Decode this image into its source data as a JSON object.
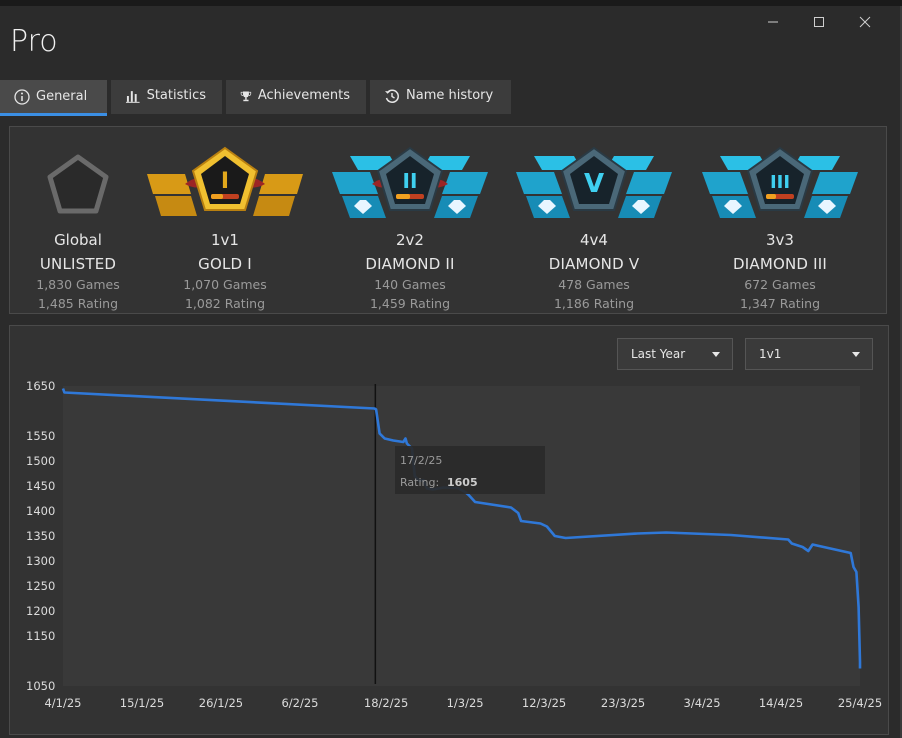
{
  "window": {
    "title": "Pro",
    "minimize_glyph": "—",
    "maximize_glyph": "☐",
    "close_glyph": "✕"
  },
  "tabs": [
    {
      "label": "General",
      "icon": "info-icon",
      "active": true
    },
    {
      "label": "Statistics",
      "icon": "bar-chart-icon",
      "active": false
    },
    {
      "label": "Achievements",
      "icon": "trophy-icon",
      "active": false
    },
    {
      "label": "Name history",
      "icon": "history-icon",
      "active": false
    }
  ],
  "ranks": [
    {
      "mode": "Global",
      "tier": "UNLISTED",
      "games": "1,830 Games",
      "rating": "1,485 Rating",
      "emblem": "unlisted-pentagon",
      "numeral": ""
    },
    {
      "mode": "1v1",
      "tier": "GOLD I",
      "games": "1,070 Games",
      "rating": "1,082 Rating",
      "emblem": "gold",
      "numeral": "I"
    },
    {
      "mode": "2v2",
      "tier": "DIAMOND II",
      "games": "140 Games",
      "rating": "1,459 Rating",
      "emblem": "diamond",
      "numeral": "II"
    },
    {
      "mode": "4v4",
      "tier": "DIAMOND V",
      "games": "478 Games",
      "rating": "1,186 Rating",
      "emblem": "diamond",
      "numeral": "V"
    },
    {
      "mode": "3v3",
      "tier": "DIAMOND III",
      "games": "672 Games",
      "rating": "1,347 Rating",
      "emblem": "diamond",
      "numeral": "III"
    }
  ],
  "filters": {
    "period": "Last Year",
    "mode": "1v1"
  },
  "tooltip": {
    "date": "17/2/25",
    "label": "Rating:",
    "value": "1605"
  },
  "colors": {
    "accent": "#3b8fe5",
    "line": "#2f78d8",
    "gold": "#e2a81c",
    "diamond": "#2bb3d8"
  },
  "chart_data": {
    "type": "line",
    "ylim": [
      1050,
      1650
    ],
    "yticks": [
      1050,
      1150,
      1200,
      1250,
      1300,
      1350,
      1400,
      1450,
      1500,
      1550,
      1650
    ],
    "xlim": [
      0,
      111
    ],
    "xticks": [
      {
        "label": "4/1/25",
        "day": 0
      },
      {
        "label": "15/1/25",
        "day": 11
      },
      {
        "label": "26/1/25",
        "day": 22
      },
      {
        "label": "6/2/25",
        "day": 33
      },
      {
        "label": "18/2/25",
        "day": 45
      },
      {
        "label": "1/3/25",
        "day": 56
      },
      {
        "label": "12/3/25",
        "day": 67
      },
      {
        "label": "23/3/25",
        "day": 78
      },
      {
        "label": "3/4/25",
        "day": 89
      },
      {
        "label": "14/4/25",
        "day": 100
      },
      {
        "label": "25/4/25",
        "day": 111
      }
    ],
    "cursor_day": 43.5,
    "series": [
      {
        "points": [
          [
            0,
            1645
          ],
          [
            0.2,
            1637
          ],
          [
            43.4,
            1605
          ],
          [
            43.6,
            1603
          ],
          [
            44.1,
            1555
          ],
          [
            44.8,
            1545
          ],
          [
            46,
            1541
          ],
          [
            47.4,
            1538
          ],
          [
            47.7,
            1545
          ],
          [
            47.9,
            1535
          ],
          [
            48.6,
            1525
          ],
          [
            49,
            1470
          ],
          [
            49.6,
            1460
          ],
          [
            50.2,
            1462
          ],
          [
            50.7,
            1445
          ],
          [
            51.5,
            1443
          ],
          [
            53,
            1447
          ],
          [
            55,
            1446
          ],
          [
            56,
            1438
          ],
          [
            56.5,
            1432
          ],
          [
            57.4,
            1418
          ],
          [
            62.4,
            1407
          ],
          [
            63.4,
            1396
          ],
          [
            63.8,
            1380
          ],
          [
            66.5,
            1375
          ],
          [
            67.4,
            1369
          ],
          [
            68.5,
            1350
          ],
          [
            70,
            1346
          ],
          [
            80,
            1355
          ],
          [
            84,
            1357
          ],
          [
            93,
            1352
          ],
          [
            101,
            1343
          ],
          [
            101.5,
            1335
          ],
          [
            103,
            1328
          ],
          [
            103.8,
            1320
          ],
          [
            104.4,
            1333
          ],
          [
            105,
            1331
          ],
          [
            109.7,
            1316
          ],
          [
            110.1,
            1288
          ],
          [
            110.5,
            1278
          ],
          [
            110.8,
            1208
          ],
          [
            111,
            1098
          ],
          [
            111,
            1085
          ]
        ]
      }
    ]
  }
}
